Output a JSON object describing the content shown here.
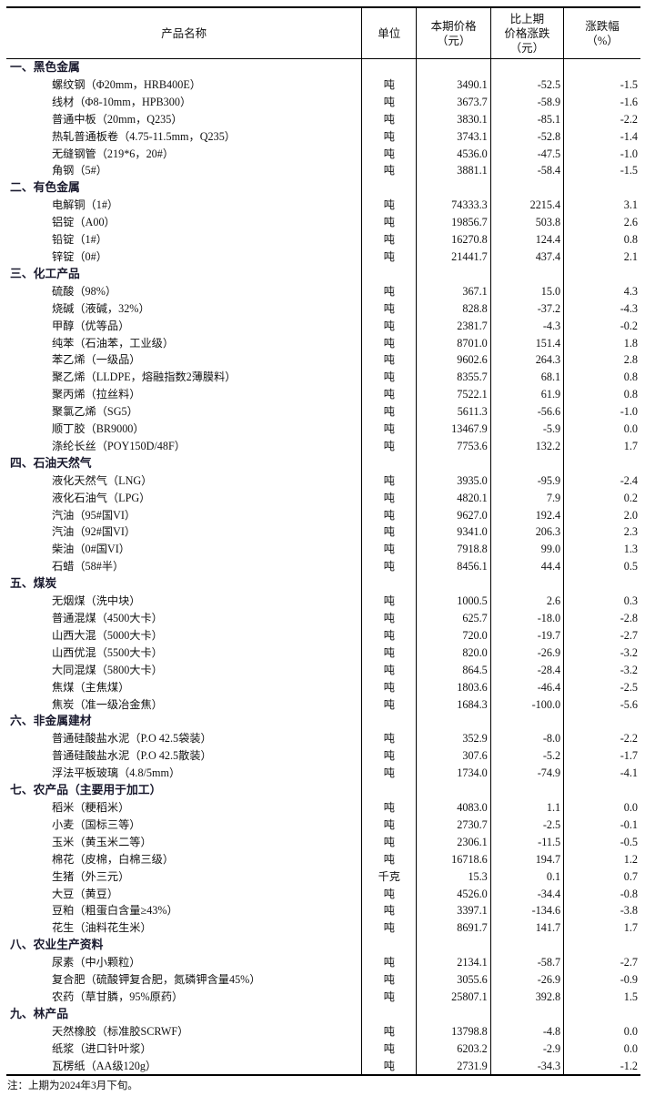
{
  "header": {
    "name": "产品名称",
    "unit": "单位",
    "price": [
      "本期价格",
      "（元）"
    ],
    "change": [
      "比上期",
      "价格涨跌",
      "（元）"
    ],
    "pct": [
      "涨跌幅",
      "（%）"
    ]
  },
  "categories": [
    {
      "title": "一、黑色金属",
      "items": [
        [
          "螺纹钢（Φ20mm，HRB400E）",
          "吨",
          "3490.1",
          "-52.5",
          "-1.5"
        ],
        [
          "线材（Φ8-10mm，HPB300）",
          "吨",
          "3673.7",
          "-58.9",
          "-1.6"
        ],
        [
          "普通中板（20mm，Q235）",
          "吨",
          "3830.1",
          "-85.1",
          "-2.2"
        ],
        [
          "热轧普通板卷（4.75-11.5mm，Q235）",
          "吨",
          "3743.1",
          "-52.8",
          "-1.4"
        ],
        [
          "无缝钢管（219*6，20#）",
          "吨",
          "4536.0",
          "-47.5",
          "-1.0"
        ],
        [
          "角钢（5#）",
          "吨",
          "3881.1",
          "-58.4",
          "-1.5"
        ]
      ]
    },
    {
      "title": "二、有色金属",
      "items": [
        [
          "电解铜（1#）",
          "吨",
          "74333.3",
          "2215.4",
          "3.1"
        ],
        [
          "铝锭（A00）",
          "吨",
          "19856.7",
          "503.8",
          "2.6"
        ],
        [
          "铅锭（1#）",
          "吨",
          "16270.8",
          "124.4",
          "0.8"
        ],
        [
          "锌锭（0#）",
          "吨",
          "21441.7",
          "437.4",
          "2.1"
        ]
      ]
    },
    {
      "title": "三、化工产品",
      "items": [
        [
          "硫酸（98%）",
          "吨",
          "367.1",
          "15.0",
          "4.3"
        ],
        [
          "烧碱（液碱，32%）",
          "吨",
          "828.8",
          "-37.2",
          "-4.3"
        ],
        [
          "甲醇（优等品）",
          "吨",
          "2381.7",
          "-4.3",
          "-0.2"
        ],
        [
          "纯苯（石油苯，工业级）",
          "吨",
          "8701.0",
          "151.4",
          "1.8"
        ],
        [
          "苯乙烯（一级品）",
          "吨",
          "9602.6",
          "264.3",
          "2.8"
        ],
        [
          "聚乙烯（LLDPE，熔融指数2薄膜料）",
          "吨",
          "8355.7",
          "68.1",
          "0.8"
        ],
        [
          "聚丙烯（拉丝料）",
          "吨",
          "7522.1",
          "61.9",
          "0.8"
        ],
        [
          "聚氯乙烯（SG5）",
          "吨",
          "5611.3",
          "-56.6",
          "-1.0"
        ],
        [
          "顺丁胶（BR9000）",
          "吨",
          "13467.9",
          "-5.9",
          "0.0"
        ],
        [
          "涤纶长丝（POY150D/48F）",
          "吨",
          "7753.6",
          "132.2",
          "1.7"
        ]
      ]
    },
    {
      "title": "四、石油天然气",
      "items": [
        [
          "液化天然气（LNG）",
          "吨",
          "3935.0",
          "-95.9",
          "-2.4"
        ],
        [
          "液化石油气（LPG）",
          "吨",
          "4820.1",
          "7.9",
          "0.2"
        ],
        [
          "汽油（95#国VI）",
          "吨",
          "9627.0",
          "192.4",
          "2.0"
        ],
        [
          "汽油（92#国VI）",
          "吨",
          "9341.0",
          "206.3",
          "2.3"
        ],
        [
          "柴油（0#国VI）",
          "吨",
          "7918.8",
          "99.0",
          "1.3"
        ],
        [
          "石蜡（58#半）",
          "吨",
          "8456.1",
          "44.4",
          "0.5"
        ]
      ]
    },
    {
      "title": "五、煤炭",
      "items": [
        [
          "无烟煤（洗中块）",
          "吨",
          "1000.5",
          "2.6",
          "0.3"
        ],
        [
          "普通混煤（4500大卡）",
          "吨",
          "625.7",
          "-18.0",
          "-2.8"
        ],
        [
          "山西大混（5000大卡）",
          "吨",
          "720.0",
          "-19.7",
          "-2.7"
        ],
        [
          "山西优混（5500大卡）",
          "吨",
          "820.0",
          "-26.9",
          "-3.2"
        ],
        [
          "大同混煤（5800大卡）",
          "吨",
          "864.5",
          "-28.4",
          "-3.2"
        ],
        [
          "焦煤（主焦煤）",
          "吨",
          "1803.6",
          "-46.4",
          "-2.5"
        ],
        [
          "焦炭（准一级冶金焦）",
          "吨",
          "1684.3",
          "-100.0",
          "-5.6"
        ]
      ]
    },
    {
      "title": "六、非金属建材",
      "items": [
        [
          "普通硅酸盐水泥（P.O 42.5袋装）",
          "吨",
          "352.9",
          "-8.0",
          "-2.2"
        ],
        [
          "普通硅酸盐水泥（P.O 42.5散装）",
          "吨",
          "307.6",
          "-5.2",
          "-1.7"
        ],
        [
          "浮法平板玻璃（4.8/5mm）",
          "吨",
          "1734.0",
          "-74.9",
          "-4.1"
        ]
      ]
    },
    {
      "title": "七、农产品（主要用于加工）",
      "items": [
        [
          "稻米（粳稻米）",
          "吨",
          "4083.0",
          "1.1",
          "0.0"
        ],
        [
          "小麦（国标三等）",
          "吨",
          "2730.7",
          "-2.5",
          "-0.1"
        ],
        [
          "玉米（黄玉米二等）",
          "吨",
          "2306.1",
          "-11.5",
          "-0.5"
        ],
        [
          "棉花（皮棉，白棉三级）",
          "吨",
          "16718.6",
          "194.7",
          "1.2"
        ],
        [
          "生猪（外三元）",
          "千克",
          "15.3",
          "0.1",
          "0.7"
        ],
        [
          "大豆（黄豆）",
          "吨",
          "4526.0",
          "-34.4",
          "-0.8"
        ],
        [
          "豆粕（粗蛋白含量≥43%）",
          "吨",
          "3397.1",
          "-134.6",
          "-3.8"
        ],
        [
          "花生（油料花生米）",
          "吨",
          "8691.7",
          "141.7",
          "1.7"
        ]
      ]
    },
    {
      "title": "八、农业生产资料",
      "items": [
        [
          "尿素（中小颗粒）",
          "吨",
          "2134.1",
          "-58.7",
          "-2.7"
        ],
        [
          "复合肥（硫酸钾复合肥，氮磷钾含量45%）",
          "吨",
          "3055.6",
          "-26.9",
          "-0.9"
        ],
        [
          "农药（草甘膦，95%原药）",
          "吨",
          "25807.1",
          "392.8",
          "1.5"
        ]
      ]
    },
    {
      "title": "九、林产品",
      "items": [
        [
          "天然橡胶（标准胶SCRWF）",
          "吨",
          "13798.8",
          "-4.8",
          "0.0"
        ],
        [
          "纸浆（进口针叶浆）",
          "吨",
          "6203.2",
          "-2.9",
          "0.0"
        ],
        [
          "瓦楞纸（AA级120g）",
          "吨",
          "2731.9",
          "-34.3",
          "-1.2"
        ]
      ]
    }
  ],
  "note": "注：上期为2024年3月下旬。"
}
